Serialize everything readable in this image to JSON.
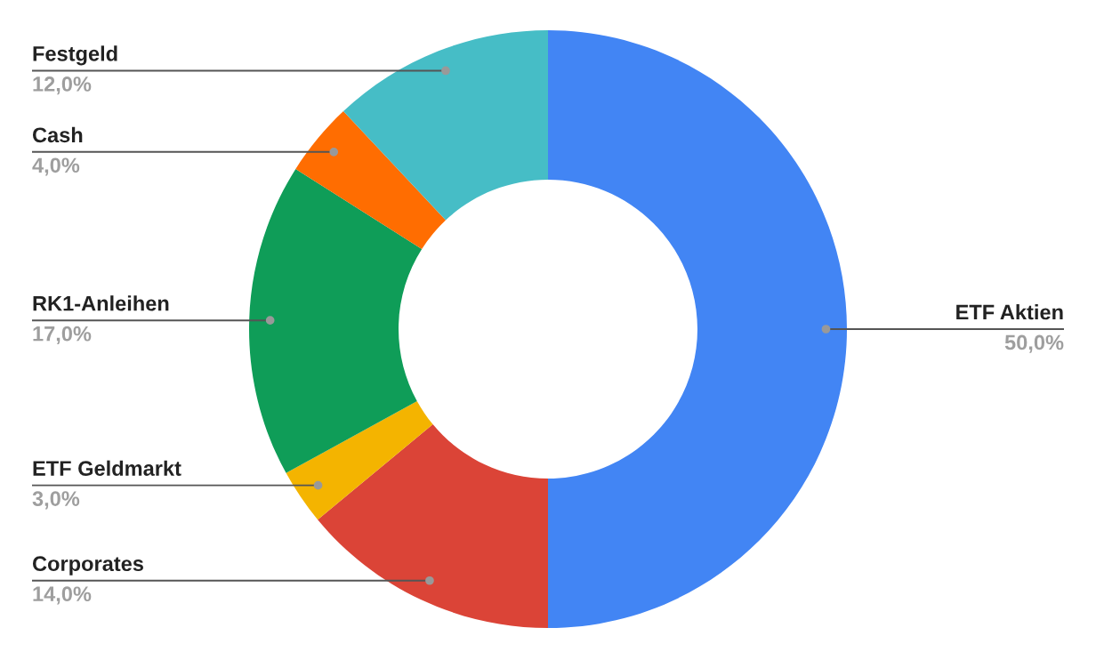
{
  "chart_data": {
    "type": "donut",
    "categories": [
      "ETF Aktien",
      "Corporates",
      "ETF Geldmarkt",
      "RK1-Anleihen",
      "Cash",
      "Festgeld"
    ],
    "values": [
      50,
      14,
      3,
      17,
      4,
      12
    ],
    "colors": [
      "#4285f4",
      "#db4437",
      "#f4b400",
      "#0f9d58",
      "#ff6d01",
      "#46bdc6"
    ],
    "value_labels": [
      "50,0%",
      "14,0%",
      "3,0%",
      "17,0%",
      "4,0%",
      "12,0%"
    ],
    "legend": false
  }
}
